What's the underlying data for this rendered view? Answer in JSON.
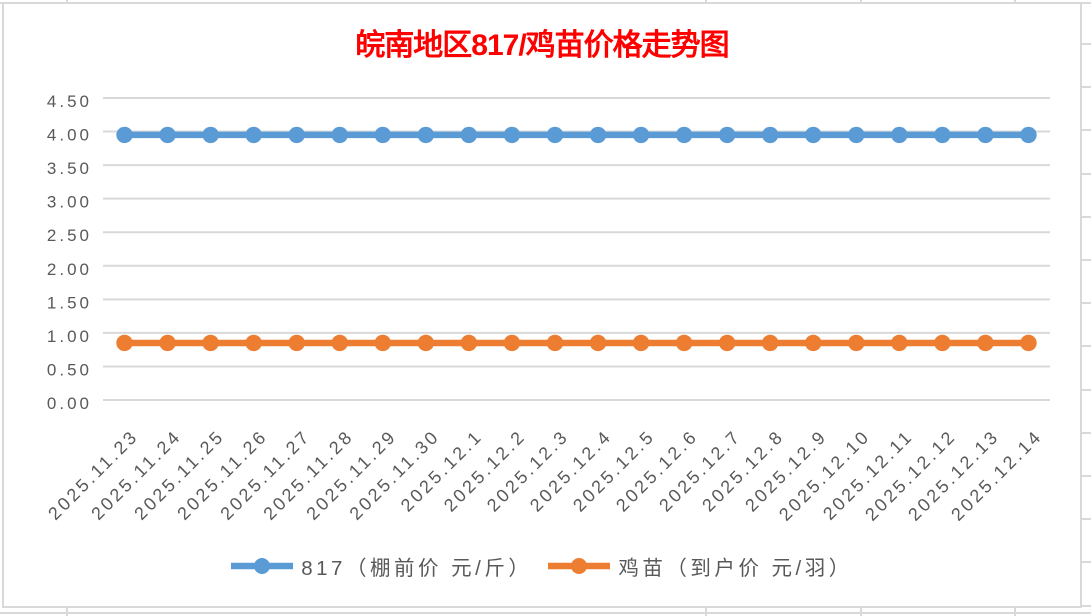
{
  "chart": {
    "title": "皖南地区817/鸡苗价格走势图",
    "title_color": "#ff0000",
    "legend": [
      "817（棚前价 元/斤）",
      "鸡苗（到户价 元/羽）"
    ]
  },
  "chart_data": {
    "type": "line",
    "title": "皖南地区817/鸡苗价格走势图",
    "categories": [
      "2025.11.23",
      "2025.11.24",
      "2025.11.25",
      "2025.11.26",
      "2025.11.27",
      "2025.11.28",
      "2025.11.29",
      "2025.11.30",
      "2025.12.1",
      "2025.12.2",
      "2025.12.3",
      "2025.12.4",
      "2025.12.5",
      "2025.12.6",
      "2025.12.7",
      "2025.12.8",
      "2025.12.9",
      "2025.12.10",
      "2025.12.11",
      "2025.12.12",
      "2025.12.13",
      "2025.12.14"
    ],
    "series": [
      {
        "name": "817（棚前价 元/斤）",
        "color": "#5b9bd5",
        "values": [
          3.95,
          3.95,
          3.95,
          3.95,
          3.95,
          3.95,
          3.95,
          3.95,
          3.95,
          3.95,
          3.95,
          3.95,
          3.95,
          3.95,
          3.95,
          3.95,
          3.95,
          3.95,
          3.95,
          3.95,
          3.95,
          3.95
        ]
      },
      {
        "name": "鸡苗（到户价 元/羽）",
        "color": "#ed7d31",
        "values": [
          0.85,
          0.85,
          0.85,
          0.85,
          0.85,
          0.85,
          0.85,
          0.85,
          0.85,
          0.85,
          0.85,
          0.85,
          0.85,
          0.85,
          0.85,
          0.85,
          0.85,
          0.85,
          0.85,
          0.85,
          0.85,
          0.85
        ]
      }
    ],
    "ylim": [
      0,
      4.5
    ],
    "ytick_step": 0.5,
    "ytick_labels": [
      "0.00",
      "0.50",
      "1.00",
      "1.50",
      "2.00",
      "2.50",
      "3.00",
      "3.50",
      "4.00",
      "4.50"
    ],
    "xlabel": "",
    "ylabel": "",
    "grid": true,
    "legend_position": "bottom",
    "axis_text_color": "#595959",
    "gridline_color": "#d9d9d9"
  }
}
